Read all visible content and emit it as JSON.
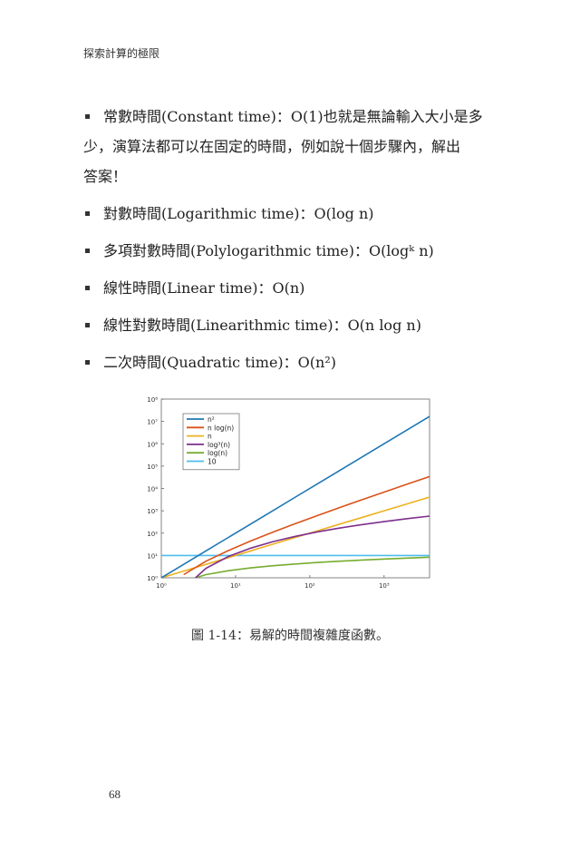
{
  "header": {
    "running_title": "探索計算的極限"
  },
  "bullets": [
    {
      "lines": [
        "常數時間(Constant time)：O(1)也就是無論輸入大小是多",
        "少，演算法都可以在固定的時間，例如說十個步驟內，解出",
        "答案！"
      ]
    },
    {
      "lines": [
        "對數時間(Logarithmic time)：O(log n)"
      ]
    },
    {
      "lines": [
        "多項對數時間(Polylogarithmic time)：O(logᵏ n)"
      ]
    },
    {
      "lines": [
        "線性時間(Linear time)：O(n)"
      ]
    },
    {
      "lines": [
        "線性對數時間(Linearithmic time)：O(n log n)"
      ]
    },
    {
      "lines": [
        "二次時間(Quadratic time)：O(n²)"
      ]
    }
  ],
  "figure": {
    "caption": "圖  1-14：易解的時間複雜度函數。",
    "chart_data": {
      "type": "line",
      "x_scale": "log",
      "y_scale": "log",
      "xlim": [
        1,
        4096
      ],
      "ylim": [
        1,
        100000000
      ],
      "x_ticks": [
        "10⁰",
        "10¹",
        "10²",
        "10³"
      ],
      "y_ticks": [
        "10⁰",
        "10¹",
        "10²",
        "10³",
        "10⁴",
        "10⁵",
        "10⁶",
        "10⁷",
        "10⁸"
      ],
      "legend_position": "top-left",
      "grid": false,
      "x": [
        1,
        2,
        4,
        8,
        16,
        32,
        64,
        128,
        256,
        512,
        1024,
        2048,
        4096
      ],
      "series": [
        {
          "name": "n²",
          "color": "#1f77b4",
          "values": [
            1,
            4,
            16,
            64,
            256,
            1024,
            4096,
            16384,
            65536,
            262144,
            1048576,
            4194304,
            16777216
          ]
        },
        {
          "name": "n log(n)",
          "color": "#d95319",
          "values": [
            0,
            1.39,
            5.55,
            16.6,
            44.4,
            111,
            266,
            621,
            1420,
            3194,
            7098,
            15615,
            34068
          ]
        },
        {
          "name": "n",
          "color": "#edb120",
          "values": [
            1,
            2,
            4,
            8,
            16,
            32,
            64,
            128,
            256,
            512,
            1024,
            2048,
            4096
          ]
        },
        {
          "name": "log³(n)",
          "color": "#7e2f8e",
          "values": [
            0,
            0.333,
            2.66,
            8.99,
            21.3,
            41.6,
            71.9,
            114,
            170,
            242,
            333,
            443,
            575
          ]
        },
        {
          "name": "log(n)",
          "color": "#77ac30",
          "values": [
            0,
            0.693,
            1.39,
            2.08,
            2.77,
            3.47,
            4.16,
            4.85,
            5.55,
            6.24,
            6.93,
            7.62,
            8.32
          ]
        },
        {
          "name": "10",
          "color": "#4dbeee",
          "values": [
            10,
            10,
            10,
            10,
            10,
            10,
            10,
            10,
            10,
            10,
            10,
            10,
            10
          ]
        }
      ]
    }
  },
  "footer": {
    "page_number": "68"
  }
}
